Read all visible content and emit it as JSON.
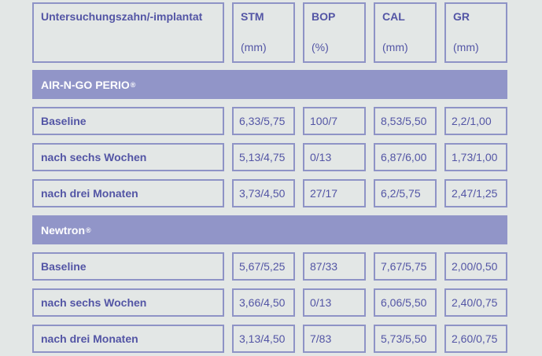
{
  "header": {
    "first": "Untersuchungszahn/-implantat",
    "cols": [
      {
        "name": "STM",
        "unit": "(mm)"
      },
      {
        "name": "BOP",
        "unit": "(%)"
      },
      {
        "name": "CAL",
        "unit": "(mm)"
      },
      {
        "name": "GR",
        "unit": "(mm)"
      }
    ]
  },
  "groups": [
    {
      "name": "AIR-N-GO PERIO",
      "mark": "®",
      "rows": [
        {
          "label": "Baseline",
          "values": [
            "6,33/5,75",
            "100/7",
            "8,53/5,50",
            "2,2/1,00"
          ]
        },
        {
          "label": "nach sechs Wochen",
          "values": [
            "5,13/4,75",
            "0/13",
            "6,87/6,00",
            "1,73/1,00"
          ]
        },
        {
          "label": "nach drei Monaten",
          "values": [
            "3,73/4,50",
            "27/17",
            "6,2/5,75",
            "2,47/1,25"
          ]
        }
      ]
    },
    {
      "name": "Newtron",
      "mark": "®",
      "rows": [
        {
          "label": "Baseline",
          "values": [
            "5,67/5,25",
            "87/33",
            "7,67/5,75",
            "2,00/0,50"
          ]
        },
        {
          "label": "nach sechs Wochen",
          "values": [
            "3,66/4,50",
            "0/13",
            "6,06/5,50",
            "2,40/0,75"
          ]
        },
        {
          "label": "nach drei Monaten",
          "values": [
            "3,13/4,50",
            "7/83",
            "5,73/5,50",
            "2,60/0,75"
          ]
        }
      ]
    }
  ]
}
